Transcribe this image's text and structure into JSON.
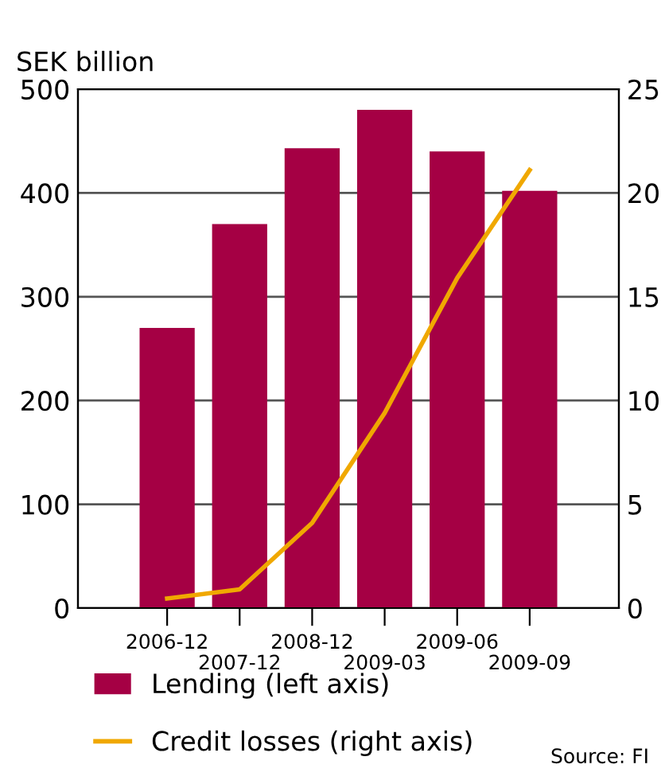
{
  "chart_data": {
    "type": "bar",
    "ylabel": "SEK billion",
    "categories": [
      "2006-12",
      "2007-12",
      "2008-12",
      "2009-03",
      "2009-06",
      "2009-09"
    ],
    "series": [
      {
        "name": "Lending (left axis)",
        "color": "#a50044",
        "values": [
          270,
          370,
          443,
          480,
          440,
          402
        ]
      },
      {
        "name": "Credit losses (right axis)",
        "type": "line",
        "axis": "y2",
        "color": "#f0a800",
        "values": [
          0.46,
          0.9,
          4.1,
          9.4,
          15.9,
          21.1
        ]
      }
    ],
    "ylim": [
      0,
      500
    ],
    "yticks": [
      0,
      100,
      200,
      300,
      400,
      500
    ],
    "y2lim": [
      0,
      25
    ],
    "y2ticks": [
      0,
      5,
      10,
      15,
      20,
      25
    ],
    "grid": "y",
    "legend": "bottom left",
    "annotations": [
      "Source: FI"
    ]
  }
}
